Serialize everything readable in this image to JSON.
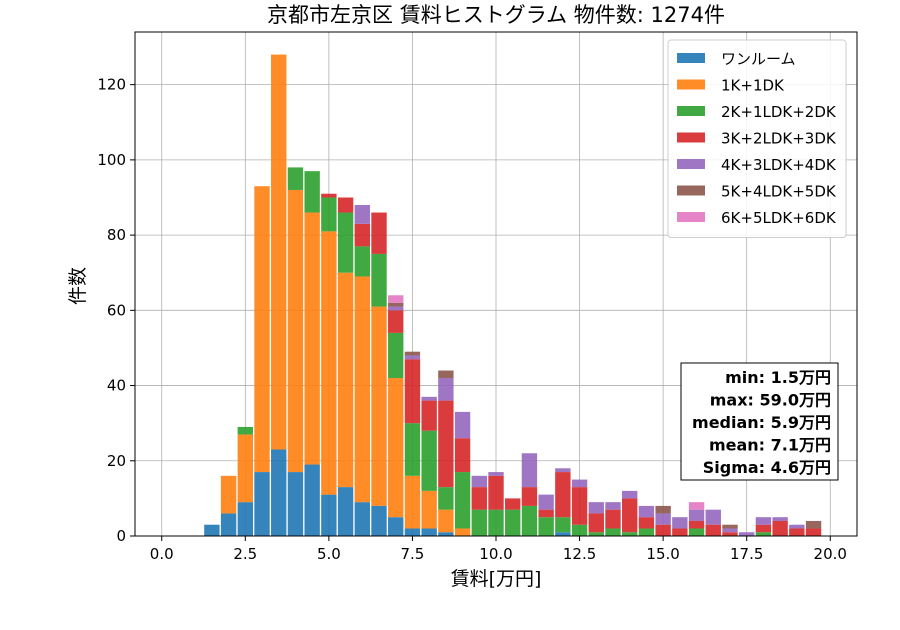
{
  "chart_data": {
    "type": "bar",
    "stacked": true,
    "title": "京都市左京区 賃料ヒストグラム 物件数: 1274件",
    "xlabel": "賃料[万円]",
    "ylabel": "件数",
    "xlim": [
      -0.8,
      20.8
    ],
    "ylim": [
      0,
      134
    ],
    "xticks": [
      "0.0",
      "2.5",
      "5.0",
      "7.5",
      "10.0",
      "12.5",
      "15.0",
      "17.5",
      "20.0"
    ],
    "xtick_values": [
      0,
      2.5,
      5,
      7.5,
      10,
      12.5,
      15,
      17.5,
      20
    ],
    "yticks": [
      "0",
      "20",
      "40",
      "60",
      "80",
      "100",
      "120"
    ],
    "ytick_values": [
      0,
      20,
      40,
      60,
      80,
      100,
      120
    ],
    "grid": true,
    "legend_position": "top-right",
    "bin_width": 0.5,
    "bin_centers": [
      1.5,
      2.0,
      2.5,
      3.0,
      3.5,
      4.0,
      4.5,
      5.0,
      5.5,
      6.0,
      6.5,
      7.0,
      7.5,
      8.0,
      8.5,
      9.0,
      9.5,
      10.0,
      10.5,
      11.0,
      11.5,
      12.0,
      12.5,
      13.0,
      13.5,
      14.0,
      14.5,
      15.0,
      15.5,
      16.0,
      16.5,
      17.0,
      17.5,
      18.0,
      18.5,
      19.0,
      19.5
    ],
    "series": [
      {
        "name": "ワンルーム",
        "color": "#1f77b4",
        "values": [
          3,
          6,
          9,
          17,
          23,
          17,
          19,
          11,
          13,
          9,
          8,
          5,
          2,
          2,
          1,
          0,
          0,
          0,
          0,
          0,
          0,
          1,
          0,
          0,
          0,
          0,
          0,
          0,
          0,
          0,
          0,
          0,
          0,
          0,
          0,
          0,
          0
        ]
      },
      {
        "name": "1K+1DK",
        "color": "#ff7f0e",
        "values": [
          0,
          10,
          18,
          76,
          105,
          75,
          67,
          70,
          57,
          60,
          53,
          37,
          14,
          10,
          6,
          2,
          0,
          0,
          0,
          0,
          0,
          0,
          0,
          0,
          0,
          0,
          0,
          0,
          0,
          0,
          0,
          0,
          0,
          0,
          0,
          0,
          0
        ]
      },
      {
        "name": "2K+1LDK+2DK",
        "color": "#2ca02c",
        "values": [
          0,
          0,
          2,
          0,
          0,
          6,
          11,
          9,
          16,
          8,
          14,
          12,
          14,
          16,
          6,
          15,
          7,
          7,
          7,
          8,
          5,
          4,
          3,
          1,
          2,
          1,
          2,
          0,
          0,
          2,
          0,
          0,
          0,
          1,
          0,
          0,
          0
        ]
      },
      {
        "name": "3K+2LDK+3DK",
        "color": "#d62728",
        "values": [
          0,
          0,
          0,
          0,
          0,
          0,
          0,
          1,
          4,
          6,
          11,
          6,
          17,
          8,
          23,
          9,
          6,
          9,
          3,
          5,
          2,
          12,
          10,
          5,
          5,
          9,
          3,
          3,
          2,
          2,
          3,
          1,
          0,
          2,
          4,
          2,
          2
        ]
      },
      {
        "name": "4K+3LDK+4DK",
        "color": "#9467bd",
        "values": [
          0,
          0,
          0,
          0,
          0,
          0,
          0,
          0,
          0,
          5,
          0,
          1,
          1,
          1,
          6,
          7,
          3,
          1,
          0,
          9,
          4,
          1,
          2,
          3,
          2,
          2,
          3,
          3,
          3,
          3,
          4,
          1,
          1,
          2,
          1,
          1,
          0
        ]
      },
      {
        "name": "5K+4LDK+5DK",
        "color": "#8c564b",
        "values": [
          0,
          0,
          0,
          0,
          0,
          0,
          0,
          0,
          0,
          0,
          0,
          1,
          1,
          0,
          2,
          0,
          0,
          0,
          0,
          0,
          0,
          0,
          0,
          0,
          0,
          0,
          0,
          2,
          0,
          0,
          0,
          1,
          0,
          0,
          0,
          0,
          2
        ]
      },
      {
        "name": "6K+5LDK+6DK",
        "color": "#e377c2",
        "values": [
          0,
          0,
          0,
          0,
          0,
          0,
          0,
          0,
          0,
          0,
          0,
          2,
          0,
          0,
          0,
          0,
          0,
          0,
          0,
          0,
          0,
          0,
          0,
          0,
          0,
          0,
          0,
          0,
          0,
          2,
          0,
          0,
          0,
          0,
          0,
          0,
          0
        ]
      }
    ],
    "stats_box": [
      "min: 1.5万円",
      "max: 59.0万円",
      "median: 5.9万円",
      "mean: 7.1万円",
      "Sigma: 4.6万円"
    ]
  }
}
